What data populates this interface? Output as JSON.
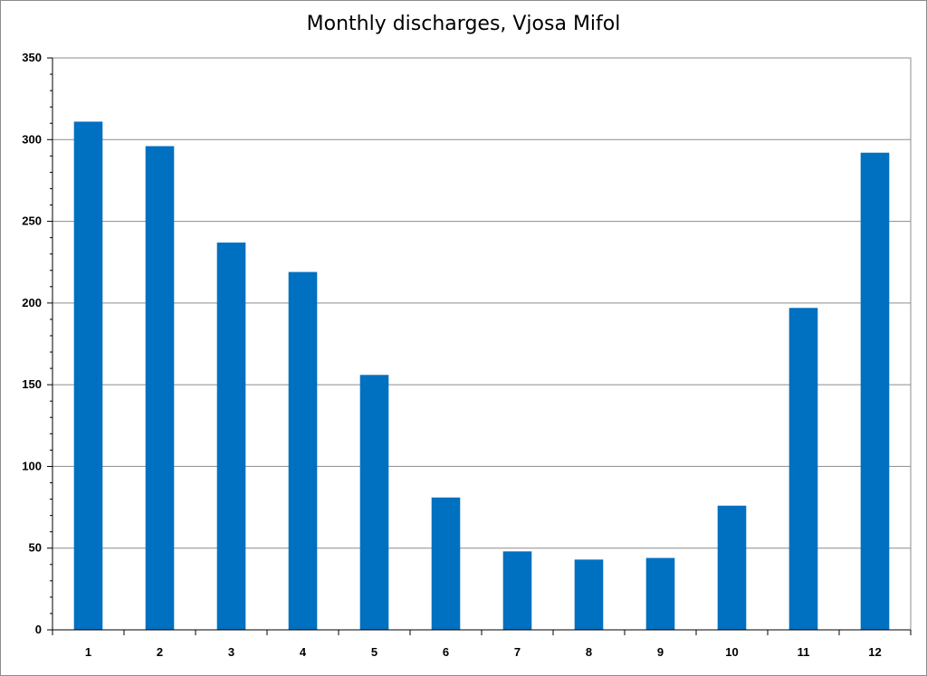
{
  "chart_data": {
    "type": "bar",
    "title": "Monthly discharges, Vjosa Mifol",
    "xlabel": "",
    "ylabel": "",
    "categories": [
      "1",
      "2",
      "3",
      "4",
      "5",
      "6",
      "7",
      "8",
      "9",
      "10",
      "11",
      "12"
    ],
    "values": [
      311,
      296,
      237,
      219,
      156,
      81,
      48,
      43,
      44,
      76,
      197,
      292
    ],
    "ylim": [
      0,
      350
    ],
    "yticks": [
      "0",
      "50",
      "100",
      "150",
      "200",
      "250",
      "300",
      "350"
    ],
    "grid": true,
    "legend": "none",
    "bar_color": "#0070c0"
  }
}
